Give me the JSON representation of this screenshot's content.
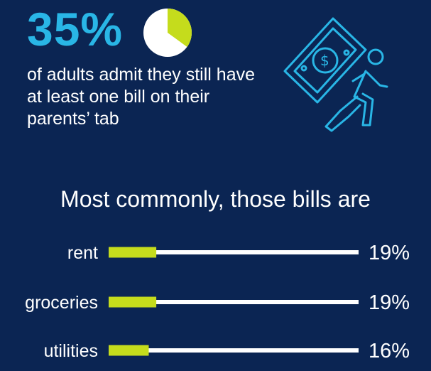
{
  "headline": {
    "percent": "35%",
    "description": "of adults admit they still have at least one bill on their parents’ tab",
    "pie_fraction": 0.35
  },
  "icons": {
    "pie": "pie-chart-icon",
    "illustration": "person-carrying-money-icon"
  },
  "colors": {
    "background": "#0b2553",
    "accent_blue": "#29b6e6",
    "accent_lime": "#c5dc1c",
    "track": "#ffffff",
    "text": "#ffffff"
  },
  "chart_data": {
    "type": "bar",
    "orientation": "horizontal",
    "title": "Most commonly, those bills are",
    "categories": [
      "rent",
      "groceries",
      "utilities"
    ],
    "values": [
      19,
      19,
      16
    ],
    "value_labels": [
      "19%",
      "19%",
      "16%"
    ],
    "xlim": [
      0,
      100
    ],
    "grid": false,
    "legend": "none"
  }
}
